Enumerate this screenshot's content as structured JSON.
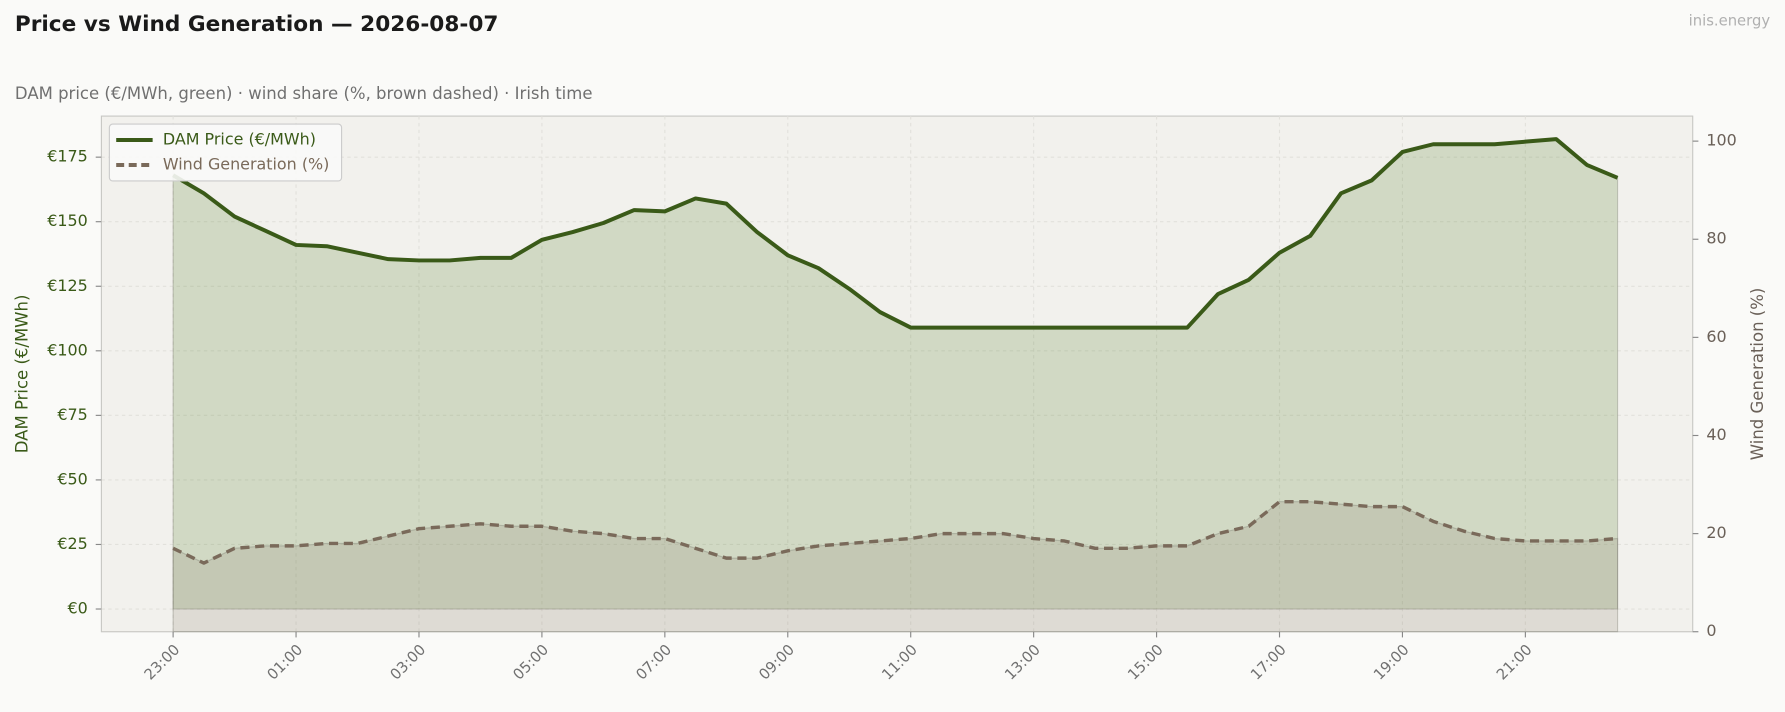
{
  "chart_data": {
    "type": "line",
    "title": "Price vs Wind Generation — 2026-08-07",
    "subtitle": "DAM price (€/MWh, green)  ·  wind share (%, brown dashed)  ·  Irish time",
    "watermark": "inis.energy",
    "ylabel": "DAM Price (€/MWh)",
    "y2label": "Wind Generation (%)",
    "categories": [
      "23:00",
      null,
      null,
      null,
      "01:00",
      null,
      null,
      null,
      "03:00",
      null,
      null,
      null,
      "05:00",
      null,
      null,
      null,
      "07:00",
      null,
      null,
      null,
      "09:00",
      null,
      null,
      null,
      "11:00",
      null,
      null,
      null,
      "13:00",
      null,
      null,
      null,
      "15:00",
      null,
      null,
      null,
      "17:00",
      null,
      null,
      null,
      "19:00",
      null,
      null,
      null,
      "21:00",
      null,
      null,
      null
    ],
    "series": [
      {
        "name": "DAM Price (€/MWh)",
        "color": "#3a5a18",
        "axis": "y",
        "values": [
          168,
          161,
          152,
          146.5,
          141,
          140.5,
          138,
          135.5,
          135,
          135,
          136,
          136,
          143,
          146,
          149.5,
          154.5,
          154,
          159,
          157,
          146,
          137,
          132,
          124,
          115,
          109,
          109,
          109,
          109,
          109,
          109,
          109,
          109,
          109,
          109,
          122,
          127.5,
          138,
          144.5,
          161,
          166,
          177,
          180,
          180,
          180,
          181,
          182,
          172,
          167
        ]
      },
      {
        "name": "Wind Generation (%)",
        "color": "#7a6a5a",
        "axis": "y2",
        "dashed": true,
        "values": [
          17,
          14,
          17,
          17.5,
          17.5,
          18,
          18,
          19.5,
          21,
          21.5,
          22,
          21.5,
          21.5,
          20.5,
          20,
          19,
          19,
          17,
          15,
          15,
          16.5,
          17.5,
          18,
          18.5,
          19,
          20,
          20,
          20,
          19,
          18.5,
          17,
          17,
          17.5,
          17.5,
          20,
          21.5,
          26.5,
          26.5,
          26,
          25.5,
          25.5,
          22.5,
          20.5,
          19,
          18.5,
          18.5,
          18.5,
          19
        ]
      }
    ],
    "ylim": [
      -8.8,
      190.9
    ],
    "yticks": [
      {
        "value": 0,
        "label": "€0"
      },
      {
        "value": 25,
        "label": "€25"
      },
      {
        "value": 50,
        "label": "€50"
      },
      {
        "value": 75,
        "label": "€75"
      },
      {
        "value": 100,
        "label": "€100"
      },
      {
        "value": 125,
        "label": "€125"
      },
      {
        "value": 150,
        "label": "€150"
      },
      {
        "value": 175,
        "label": "€175"
      }
    ],
    "y2lim": [
      0,
      105.1
    ],
    "y2ticks": [
      0,
      20,
      40,
      60,
      80,
      100
    ],
    "grid": true,
    "legend": "upper-left"
  }
}
